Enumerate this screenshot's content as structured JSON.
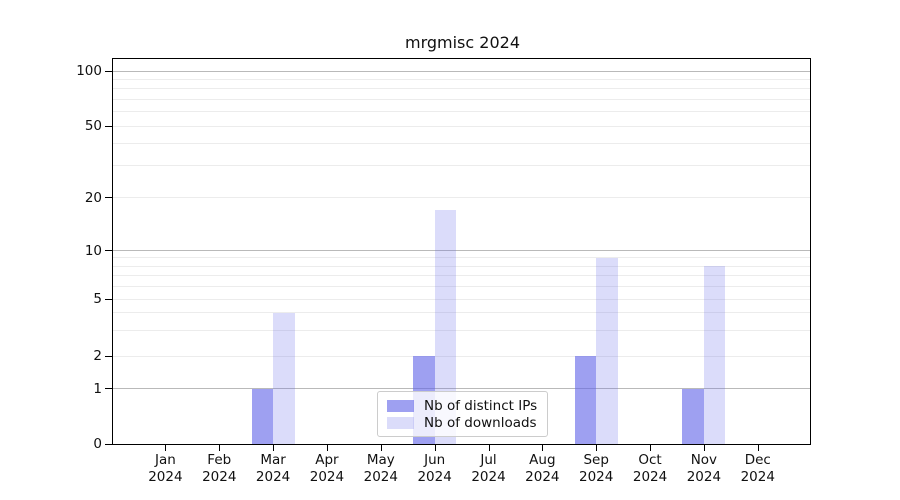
{
  "chart_data": {
    "type": "bar",
    "title": "mrgmisc 2024",
    "categories": [
      "Jan",
      "Feb",
      "Mar",
      "Apr",
      "May",
      "Jun",
      "Jul",
      "Aug",
      "Sep",
      "Oct",
      "Nov",
      "Dec"
    ],
    "category_year": "2024",
    "series": [
      {
        "name": "Nb of distinct IPs",
        "color": "rgba(99,102,232,0.62)",
        "values": [
          0,
          0,
          1,
          0,
          0,
          2,
          0,
          0,
          2,
          0,
          1,
          0
        ]
      },
      {
        "name": "Nb of downloads",
        "color": "rgba(99,102,232,0.23)",
        "values": [
          0,
          0,
          4,
          0,
          0,
          17,
          0,
          0,
          9,
          0,
          8,
          0
        ]
      }
    ],
    "ylabel": "",
    "xlabel": "",
    "y_ticks": [
      0,
      1,
      2,
      5,
      10,
      20,
      50,
      100
    ],
    "y_major_gridlines": [
      1,
      10,
      100
    ],
    "y_minor_gridlines": [
      3,
      4,
      6,
      7,
      8,
      9,
      30,
      40,
      60,
      70,
      80,
      90
    ],
    "ylim": [
      0,
      110
    ],
    "grid": "horizontal",
    "legend_position": "lower center",
    "colors": {
      "bar_base": "#6366e8",
      "major_grid": "#b9b9b9",
      "minor_grid": "#ececec",
      "axis": "#000000",
      "text": "#111111"
    }
  }
}
